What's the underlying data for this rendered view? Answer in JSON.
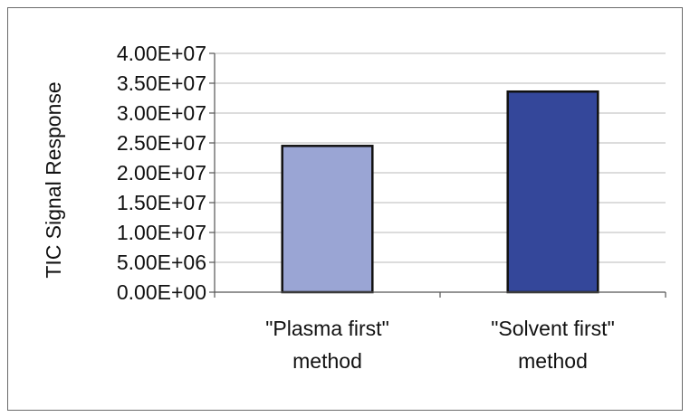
{
  "chart_data": {
    "type": "bar",
    "title": "",
    "xlabel": "",
    "ylabel": "TIC Signal Response",
    "categories": [
      [
        "\"Plasma first\"",
        "method"
      ],
      [
        "\"Solvent first\"",
        "method"
      ]
    ],
    "values": [
      24500000,
      33600000
    ],
    "bar_colors": [
      "#9aa5d4",
      "#34479a"
    ],
    "ylim": [
      0,
      40000000
    ],
    "yticks": [
      0,
      5000000,
      10000000,
      15000000,
      20000000,
      25000000,
      30000000,
      35000000,
      40000000
    ],
    "ytick_labels": [
      "0.00E+00",
      "5.00E+06",
      "1.00E+07",
      "1.50E+07",
      "2.00E+07",
      "2.50E+07",
      "3.00E+07",
      "3.50E+07",
      "4.00E+07"
    ],
    "grid": true,
    "legend": "none"
  }
}
